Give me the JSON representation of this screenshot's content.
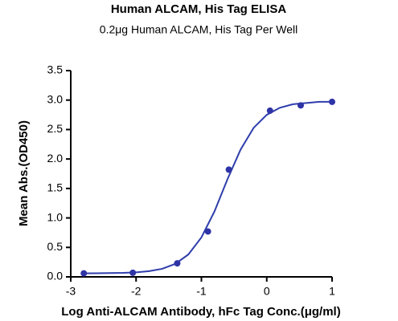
{
  "chart_data": {
    "type": "scatter",
    "title": "Human ALCAM, His Tag ELISA",
    "subtitle": "0.2μg Human ALCAM, His Tag Per Well",
    "x_label": "Log Anti-ALCAM Antibody, hFc Tag Conc.(μg/ml)",
    "y_label": "Mean Abs.(OD450)",
    "x": [
      -2.8,
      -2.05,
      -1.37,
      -0.9,
      -0.58,
      0.05,
      0.52,
      1.0
    ],
    "values": [
      0.06,
      0.07,
      0.23,
      0.77,
      1.82,
      2.82,
      2.91,
      2.97
    ],
    "color": "#2e34a6",
    "fit": {
      "x": [
        -2.8,
        -2.6,
        -2.4,
        -2.2,
        -2.0,
        -1.8,
        -1.6,
        -1.4,
        -1.2,
        -1.0,
        -0.8,
        -0.6,
        -0.4,
        -0.2,
        0,
        0.2,
        0.4,
        0.6,
        0.8,
        1.0
      ],
      "values": [
        0.06,
        0.062,
        0.064,
        0.068,
        0.077,
        0.097,
        0.137,
        0.22,
        0.38,
        0.67,
        1.11,
        1.66,
        2.16,
        2.53,
        2.75,
        2.87,
        2.93,
        2.95,
        2.97,
        2.97
      ],
      "color": "#2e3dab"
    },
    "xlim": [
      -3,
      1
    ],
    "xticks": [
      -3,
      -2,
      -1,
      0,
      1
    ],
    "ylim": [
      0,
      3.5
    ],
    "yticks": [
      {
        "value": 0,
        "label": "0.0"
      },
      {
        "value": 0.5,
        "label": "0.5"
      },
      {
        "value": 1,
        "label": "1.0"
      },
      {
        "value": 1.5,
        "label": "1.5"
      },
      {
        "value": 2,
        "label": "2.0"
      },
      {
        "value": 2.5,
        "label": "2.5"
      },
      {
        "value": 3,
        "label": "3.0"
      },
      {
        "value": 3.5,
        "label": "3.5"
      }
    ],
    "grid": false
  }
}
